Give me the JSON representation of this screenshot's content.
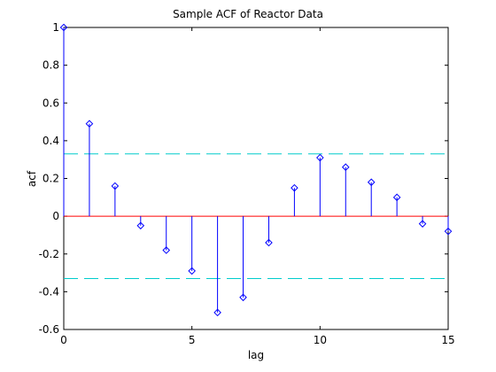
{
  "chart_data": {
    "type": "stem",
    "title": "Sample ACF of Reactor Data",
    "xlabel": "lag",
    "ylabel": "acf",
    "xlim": [
      0,
      15
    ],
    "ylim": [
      -0.6,
      1
    ],
    "xticks": [
      0,
      5,
      10,
      15
    ],
    "yticks": [
      -0.6,
      -0.4,
      -0.2,
      0,
      0.2,
      0.4,
      0.6,
      0.8,
      1
    ],
    "grid": false,
    "series": [
      {
        "x": [
          0,
          1,
          2,
          3,
          4,
          5,
          6,
          7,
          8,
          9,
          10,
          11,
          12,
          13,
          14,
          15
        ],
        "values": [
          1.0,
          0.49,
          0.16,
          -0.05,
          -0.18,
          -0.29,
          -0.51,
          -0.43,
          -0.14,
          0.15,
          0.31,
          0.26,
          0.18,
          0.1,
          -0.04,
          -0.08
        ],
        "color": "#0000ff"
      }
    ],
    "zero_line": {
      "y": 0,
      "color": "#ff0000"
    },
    "confidence_bounds": {
      "upper": 0.33,
      "lower": -0.33,
      "color": "#00cccc",
      "style": "dashed"
    }
  }
}
